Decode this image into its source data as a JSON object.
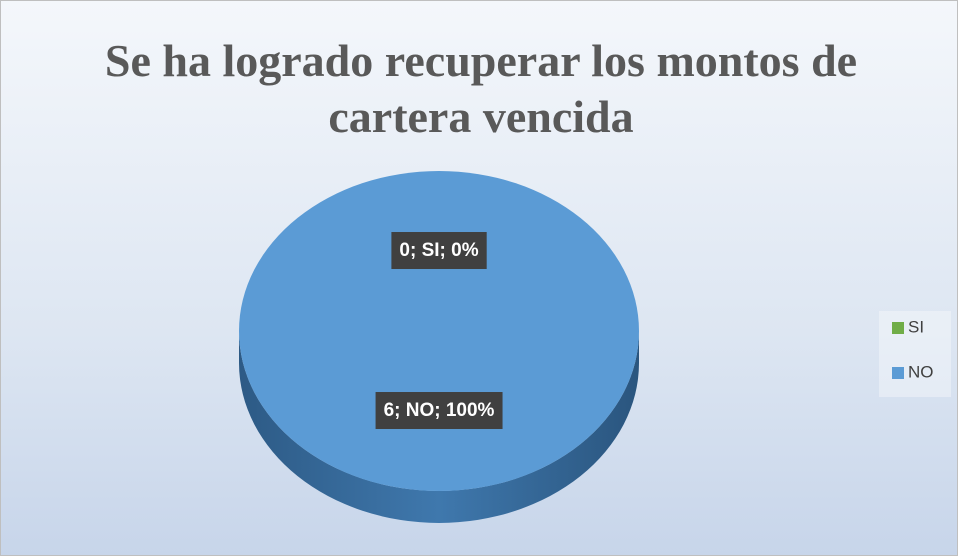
{
  "chart_data": {
    "type": "pie",
    "title": "Se ha logrado recuperar los montos de cartera vencida",
    "categories": [
      "SI",
      "NO"
    ],
    "values": [
      0,
      6
    ],
    "value_labels": [
      "0; SI; 0%",
      "6; NO; 100%"
    ],
    "colors": [
      "#70ad47",
      "#5b9bd5"
    ],
    "legend": "right"
  }
}
